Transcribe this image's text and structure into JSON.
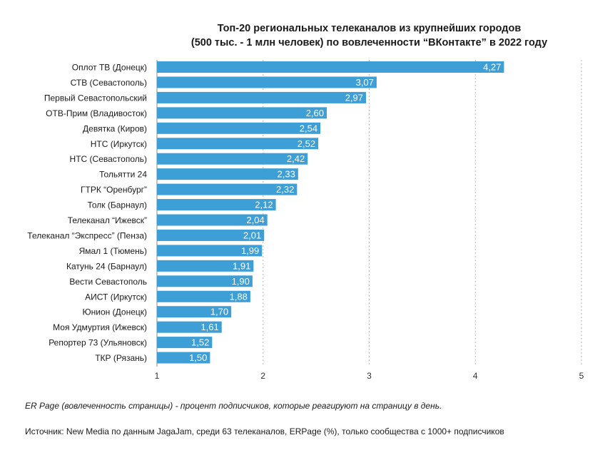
{
  "chart_data": {
    "type": "bar",
    "orientation": "horizontal",
    "title": "Топ-20 региональных телеканалов из крупнейших городов",
    "subtitle": "(500 тыс. - 1 млн человек) по вовлеченности “ВКонтакте” в 2022 году",
    "categories": [
      "Оплот ТВ (Донецк)",
      "СТВ (Севастополь)",
      "Первый Севастопольский",
      "ОТВ-Прим (Владивосток)",
      "Девятка (Киров)",
      "НТС (Иркутск)",
      "НТС (Севастополь)",
      "Тольятти 24",
      "ГТРК “Оренбург”",
      "Толк (Барнаул)",
      "Телеканал “Ижевск”",
      "Телеканал “Экспресс” (Пенза)",
      "Ямал 1 (Тюмень)",
      "Катунь 24 (Барнаул)",
      "Вести Севастополь",
      "АИСТ (Иркутск)",
      "Юнион (Донецк)",
      "Моя Удмуртия (Ижевск)",
      "Репортер 73 (Ульяновск)",
      "ТКР (Рязань)"
    ],
    "values": [
      4.27,
      3.07,
      2.97,
      2.6,
      2.54,
      2.52,
      2.42,
      2.33,
      2.32,
      2.12,
      2.04,
      2.01,
      1.99,
      1.91,
      1.9,
      1.88,
      1.7,
      1.61,
      1.52,
      1.5
    ],
    "value_labels": [
      "4,27",
      "3,07",
      "2,97",
      "2,60",
      "2,54",
      "2,52",
      "2,42",
      "2,33",
      "2,32",
      "2,12",
      "2,04",
      "2,01",
      "1,99",
      "1,91",
      "1,90",
      "1,88",
      "1,70",
      "1,61",
      "1,52",
      "1,50"
    ],
    "xlim": [
      1,
      5
    ],
    "xticks": [
      1,
      2,
      3,
      4,
      5
    ],
    "xtick_labels": [
      "1",
      "2",
      "3",
      "4",
      "5"
    ],
    "grid": "vertical-dotted",
    "bar_color": "#3d9fd6",
    "label_color": "#ffffff"
  },
  "notes": {
    "er": "ER Page (вовлеченность страницы) - процент подписчиков, которые реагируют на страницу в день.",
    "source": "Источник: New Media по данным JagaJam, среди 63 телеканалов, ERPage (%), только сообщества с 1000+ подписчиков"
  }
}
